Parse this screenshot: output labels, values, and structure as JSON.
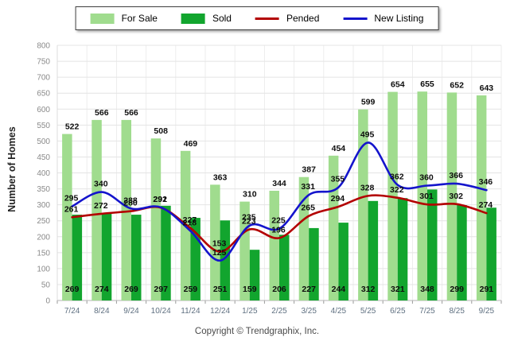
{
  "ylabel": "Number of Homes",
  "footer": {
    "copyright": "Copyright © Trendgraphix, Inc."
  },
  "chart_data": {
    "type": "bar",
    "title": "",
    "categories": [
      "7/24",
      "8/24",
      "9/24",
      "10/24",
      "11/24",
      "12/24",
      "1/25",
      "2/25",
      "3/25",
      "4/25",
      "5/25",
      "6/25",
      "7/25",
      "8/25",
      "9/25"
    ],
    "series": [
      {
        "name": "For Sale",
        "type": "bar",
        "color": "#a0dc8e",
        "values": [
          522,
          566,
          566,
          508,
          469,
          363,
          310,
          344,
          387,
          454,
          599,
          654,
          655,
          652,
          643
        ]
      },
      {
        "name": "Sold",
        "type": "bar",
        "color": "#12a52e",
        "values": [
          269,
          274,
          269,
          297,
          259,
          251,
          159,
          206,
          227,
          244,
          312,
          321,
          348,
          299,
          291
        ]
      },
      {
        "name": "Pended",
        "type": "line",
        "color": "#b30000",
        "values": [
          261,
          272,
          280,
          291,
          227,
          153,
          223,
          196,
          265,
          294,
          328,
          322,
          301,
          302,
          274
        ]
      },
      {
        "name": "New Listing",
        "type": "line",
        "color": "#1414cc",
        "values": [
          295,
          340,
          288,
          292,
          218,
          125,
          235,
          225,
          331,
          355,
          495,
          362,
          360,
          366,
          346
        ]
      }
    ],
    "xlabel": "",
    "ylabel": "Number of Homes",
    "ylim": [
      0,
      800
    ],
    "ytick_step": 50,
    "grid": true,
    "legend_position": "top",
    "styles": {
      "grid_color": "#e4e4e4",
      "vgrid_color": "#ededed",
      "axis_color": "#b5b5b5",
      "ytick_color": "#8a8a8a",
      "xtick_color": "#5f7081",
      "value_label_color": "#0d0d0d"
    }
  }
}
